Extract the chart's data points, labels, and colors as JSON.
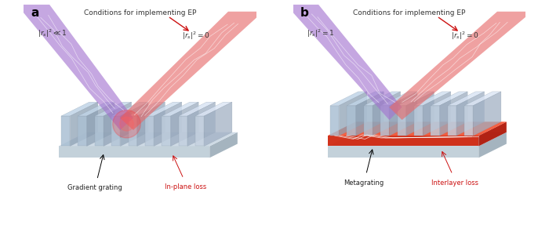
{
  "panel_a": {
    "label": "a",
    "condition_title": "Conditions for implementing EP",
    "left_label": "$|r_{s}|^{2} \\ll 1$",
    "right_label": "$|r_{s}|^{2} = 0$",
    "bottom_left": "Gradient grating",
    "bottom_right": "In-plane loss",
    "has_interlayer": false
  },
  "panel_b": {
    "label": "b",
    "condition_title": "Conditions for implementing EP",
    "left_label": "$|r_{s}|^{2} = 1$",
    "right_label": "$|r_{s}|^{2} = 0$",
    "bottom_left": "Metagrating",
    "bottom_right": "Interlayer loss",
    "has_interlayer": true
  },
  "background_color": "#ffffff",
  "beam_purple": "#b080d8",
  "beam_red": "#f08080",
  "loss_color": "#cc1111",
  "fin_front_colors": [
    "#b8cedd",
    "#c8d8e8",
    "#aabccc",
    "#b4c8d8",
    "#a8bccC"
  ],
  "fin_top_color": "#d8e8f4",
  "fin_side_color": "#9aaec0",
  "base_top_color": "#d0dce8",
  "base_front_color": "#b0c0d0",
  "base_side_color": "#98a8b8",
  "interlayer_top": "#e84020",
  "interlayer_front": "#c03010",
  "interlayer_side": "#a02808",
  "figsize": [
    7.0,
    2.96
  ],
  "dpi": 100
}
